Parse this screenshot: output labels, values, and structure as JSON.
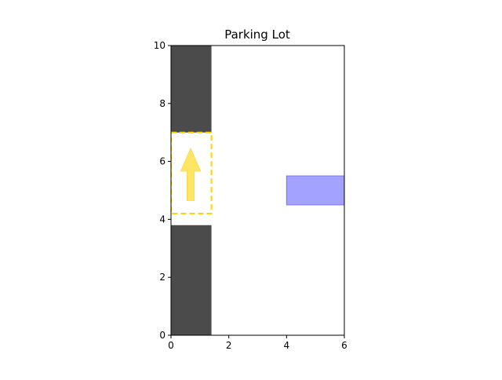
{
  "chart_data": {
    "type": "diagram",
    "title": "Parking Lot",
    "xlabel": "",
    "ylabel": "",
    "xlim": [
      0,
      6
    ],
    "ylim": [
      0,
      10
    ],
    "xticks": [
      0,
      2,
      4,
      6
    ],
    "yticks": [
      0,
      2,
      4,
      6,
      8,
      10
    ],
    "grid": false,
    "legend": "none",
    "shapes": [
      {
        "name": "occupied-block-top",
        "kind": "rect",
        "x": 0,
        "y": 7,
        "width": 1.4,
        "height": 3,
        "fill": "#4b4b4b"
      },
      {
        "name": "occupied-block-bottom",
        "kind": "rect",
        "x": 0,
        "y": 0,
        "width": 1.4,
        "height": 3.8,
        "fill": "#4b4b4b"
      },
      {
        "name": "vehicle-rect",
        "kind": "rect",
        "x": 4,
        "y": 4.5,
        "width": 2,
        "height": 1,
        "fill": "#a3a3ff",
        "stroke": "#7777ee"
      }
    ],
    "target_spot": {
      "x": 0,
      "y": 4.2,
      "width": 1.4,
      "height": 2.8,
      "stroke": "#ffd200",
      "style": "dashed"
    },
    "arrow": {
      "x": 0.68,
      "y_start": 4.65,
      "y_end": 6.45,
      "color": "#ffe45c",
      "direction": "up"
    }
  }
}
